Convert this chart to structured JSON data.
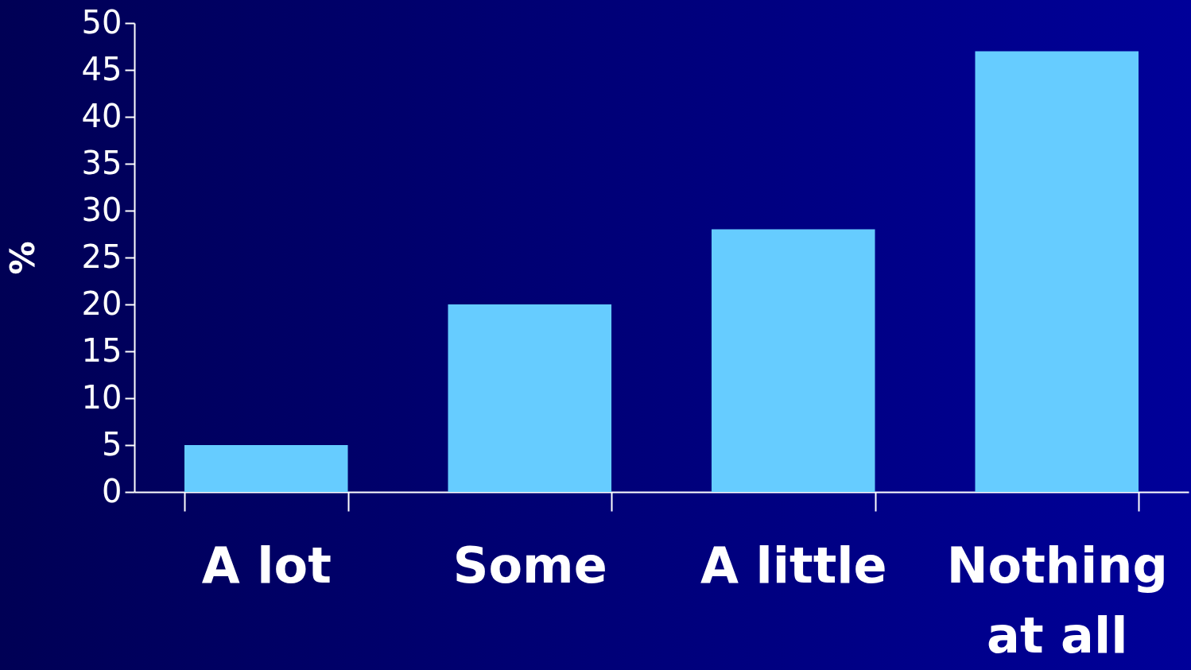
{
  "chart_data": {
    "type": "bar",
    "ylabel": "%",
    "categories": [
      "A lot",
      "Some",
      "A little",
      "Nothing at all"
    ],
    "values": [
      5,
      20,
      28,
      47
    ],
    "color": "#66ccff",
    "ylim": [
      0,
      50
    ],
    "yticks": [
      0,
      5,
      10,
      15,
      20,
      25,
      30,
      35,
      40,
      45,
      50
    ],
    "grid": false,
    "legend": false
  }
}
